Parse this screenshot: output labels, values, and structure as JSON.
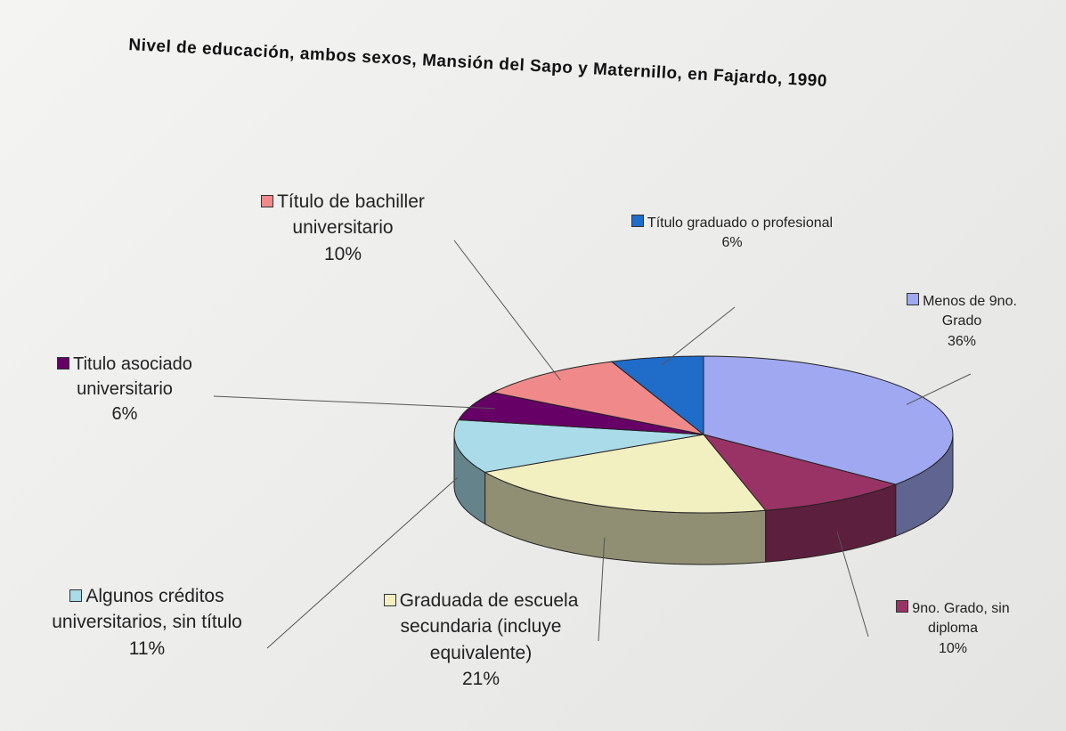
{
  "chart_data": {
    "type": "pie",
    "title": "Nivel de educación, ambos sexos, Mansión del Sapo y Maternillo, en Fajardo, 1990",
    "categories": [
      "Menos de 9no. Grado",
      "9no. Grado, sin diploma",
      "Graduada de escuela secundaria (incluye equivalente)",
      "Algunos créditos universitarios, sin título",
      "Titulo asociado universitario",
      "Título de bachiller universitario",
      "Título graduado o profesional"
    ],
    "values": [
      36,
      10,
      21,
      11,
      6,
      10,
      6
    ],
    "value_labels": [
      "36%",
      "10%",
      "21%",
      "11%",
      "6%",
      "10%",
      "6%"
    ],
    "colors": [
      "#9fa8f0",
      "#993366",
      "#f2efc0",
      "#a9dbe8",
      "#660066",
      "#f08a8a",
      "#1f6cc9"
    ]
  }
}
